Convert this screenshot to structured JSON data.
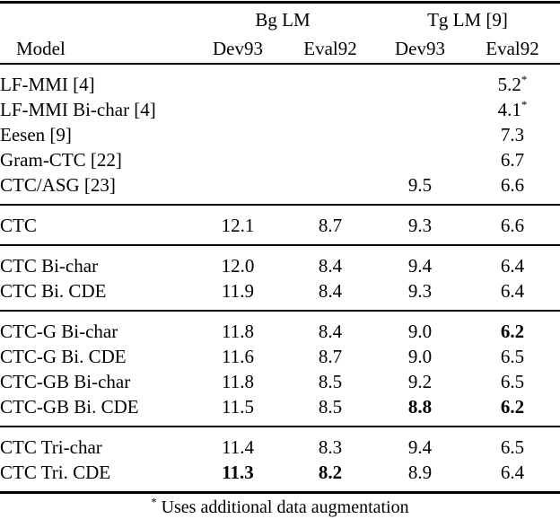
{
  "table": {
    "col_groups": [
      {
        "label": "Bg LM"
      },
      {
        "label": "Tg LM [9]"
      }
    ],
    "columns": [
      "Model",
      "Dev93",
      "Eval92",
      "Dev93",
      "Eval92"
    ],
    "groups": [
      {
        "rows": [
          {
            "model": "LF-MMI [4]",
            "cells": [
              {
                "t": ""
              },
              {
                "t": ""
              },
              {
                "t": ""
              },
              {
                "t": "5.2",
                "sup": "*"
              }
            ]
          },
          {
            "model": "LF-MMI Bi-char [4]",
            "cells": [
              {
                "t": ""
              },
              {
                "t": ""
              },
              {
                "t": ""
              },
              {
                "t": "4.1",
                "sup": "*"
              }
            ]
          },
          {
            "model": "Eesen [9]",
            "cells": [
              {
                "t": ""
              },
              {
                "t": ""
              },
              {
                "t": ""
              },
              {
                "t": "7.3"
              }
            ]
          },
          {
            "model": "Gram-CTC [22]",
            "cells": [
              {
                "t": ""
              },
              {
                "t": ""
              },
              {
                "t": ""
              },
              {
                "t": "6.7"
              }
            ]
          },
          {
            "model": "CTC/ASG [23]",
            "cells": [
              {
                "t": ""
              },
              {
                "t": ""
              },
              {
                "t": "9.5"
              },
              {
                "t": "6.6"
              }
            ]
          }
        ]
      },
      {
        "rows": [
          {
            "model": "CTC",
            "cells": [
              {
                "t": "12.1"
              },
              {
                "t": "8.7"
              },
              {
                "t": "9.3"
              },
              {
                "t": "6.6"
              }
            ]
          }
        ]
      },
      {
        "rows": [
          {
            "model": "CTC Bi-char",
            "cells": [
              {
                "t": "12.0"
              },
              {
                "t": "8.4"
              },
              {
                "t": "9.4"
              },
              {
                "t": "6.4"
              }
            ]
          },
          {
            "model": "CTC Bi. CDE",
            "cells": [
              {
                "t": "11.9"
              },
              {
                "t": "8.4"
              },
              {
                "t": "9.3"
              },
              {
                "t": "6.4"
              }
            ]
          }
        ]
      },
      {
        "rows": [
          {
            "model": "CTC-G Bi-char",
            "cells": [
              {
                "t": "11.8"
              },
              {
                "t": "8.4"
              },
              {
                "t": "9.0"
              },
              {
                "t": "6.2",
                "b": true
              }
            ]
          },
          {
            "model": "CTC-G Bi. CDE",
            "cells": [
              {
                "t": "11.6"
              },
              {
                "t": "8.7"
              },
              {
                "t": "9.0"
              },
              {
                "t": "6.5"
              }
            ]
          },
          {
            "model": "CTC-GB Bi-char",
            "cells": [
              {
                "t": "11.8"
              },
              {
                "t": "8.5"
              },
              {
                "t": "9.2"
              },
              {
                "t": "6.5"
              }
            ]
          },
          {
            "model": "CTC-GB Bi. CDE",
            "cells": [
              {
                "t": "11.5"
              },
              {
                "t": "8.5"
              },
              {
                "t": "8.8",
                "b": true
              },
              {
                "t": "6.2",
                "b": true
              }
            ]
          }
        ]
      },
      {
        "rows": [
          {
            "model": "CTC Tri-char",
            "cells": [
              {
                "t": "11.4"
              },
              {
                "t": "8.3"
              },
              {
                "t": "9.4"
              },
              {
                "t": "6.5"
              }
            ]
          },
          {
            "model": "CTC Tri. CDE",
            "cells": [
              {
                "t": "11.3",
                "b": true
              },
              {
                "t": "8.2",
                "b": true
              },
              {
                "t": "8.9"
              },
              {
                "t": "6.4"
              }
            ]
          }
        ]
      }
    ],
    "footnote": {
      "sup": "*",
      "text": "Uses additional data augmentation"
    }
  }
}
